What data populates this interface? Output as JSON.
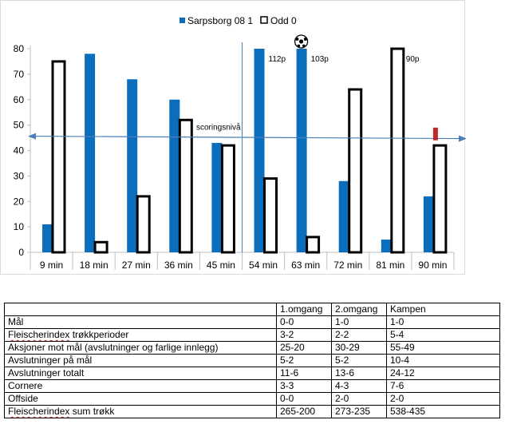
{
  "chart_data": {
    "type": "bar",
    "categories": [
      "9 min",
      "18 min",
      "27 min",
      "36 min",
      "45 min",
      "54 min",
      "63 min",
      "72 min",
      "81 min",
      "90 min"
    ],
    "series": [
      {
        "name": "Sarpsborg 08 1",
        "values": [
          11,
          78,
          68,
          60,
          43,
          80,
          80,
          28,
          5,
          22
        ],
        "color": "#0a6ebd"
      },
      {
        "name": "Odd 0",
        "values": [
          75,
          4,
          22,
          52,
          42,
          29,
          6,
          64,
          80,
          42
        ],
        "color": "#ffffff",
        "stroke": "#000000"
      }
    ],
    "ylim": [
      0,
      80
    ],
    "yticks": [
      0,
      10,
      20,
      30,
      40,
      50,
      60,
      70,
      80
    ],
    "grid": false,
    "legend": "top-center",
    "annotations": {
      "threshold_label": "scoringsnivå",
      "threshold_value": 45,
      "overflow_labels": [
        {
          "category": "54 min",
          "text": "112p"
        },
        {
          "category": "63 min",
          "text": "103p"
        },
        {
          "category": "81 min",
          "text": "90p"
        }
      ],
      "goal_marker": {
        "category": "63 min",
        "icon": "soccer-ball-icon"
      },
      "red_marker": {
        "category": "90 min",
        "from": 44,
        "to": 49,
        "color": "#c0292a"
      },
      "divider_after": "45 min"
    }
  },
  "table": {
    "headers": [
      "",
      "1.omgang",
      "2.omgang",
      "Kampen"
    ],
    "rows": [
      [
        "Mål",
        "0-0",
        "1-0",
        "1-0"
      ],
      [
        "Fleischerindex trøkkperioder",
        "3-2",
        "2-2",
        "5-4"
      ],
      [
        "Aksjoner mot mål (avslutninger og farlige innlegg)",
        "25-20",
        "30-29",
        "55-49"
      ],
      [
        "Avslutninger på mål",
        "5-2",
        "5-2",
        "10-4"
      ],
      [
        "Avslutninger totalt",
        "11-6",
        "13-6",
        "24-12"
      ],
      [
        "Cornere",
        "3-3",
        "4-3",
        "7-6"
      ],
      [
        "Offside",
        "0-0",
        "2-0",
        "2-0"
      ],
      [
        "Fleischerindex sum trøkk",
        "265-200",
        "273-235",
        "538-435"
      ]
    ]
  }
}
